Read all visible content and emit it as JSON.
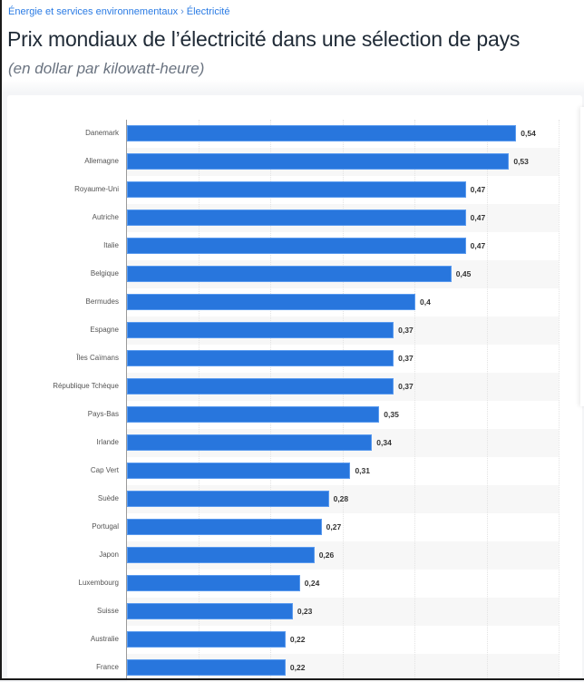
{
  "breadcrumb": {
    "items": [
      "Énergie et services environnementaux",
      "Électricité"
    ],
    "separator": "›"
  },
  "header": {
    "title": "Prix mondiaux de l’électricité dans une sélection de pays",
    "subtitle": "(en dollar par kilowatt-heure)"
  },
  "colors": {
    "bar": "#2876dd",
    "breadcrumb": "#2a7be4",
    "title": "#1f2a36",
    "row_alt": "#f7f7f7"
  },
  "chart_data": {
    "type": "bar",
    "orientation": "horizontal",
    "title": "Prix mondiaux de l’électricité dans une sélection de pays",
    "subtitle": "(en dollar par kilowatt-heure)",
    "xlabel": "",
    "ylabel": "",
    "xlim": [
      0,
      0.6
    ],
    "grid": true,
    "gridline_step": 0.1,
    "legend": null,
    "categories": [
      "Danemark",
      "Allemagne",
      "Royaume-Uni",
      "Autriche",
      "Italie",
      "Belgique",
      "Bermudes",
      "Espagne",
      "Îles Caïmans",
      "République Tchèque",
      "Pays-Bas",
      "Irlande",
      "Cap Vert",
      "Suède",
      "Portugal",
      "Japon",
      "Luxembourg",
      "Suisse",
      "Australie",
      "France"
    ],
    "values": [
      0.54,
      0.53,
      0.47,
      0.47,
      0.47,
      0.45,
      0.4,
      0.37,
      0.37,
      0.37,
      0.35,
      0.34,
      0.31,
      0.28,
      0.27,
      0.26,
      0.24,
      0.23,
      0.22,
      0.22
    ],
    "labels": [
      "0,54",
      "0,53",
      "0,47",
      "0,47",
      "0,47",
      "0,45",
      "0,4",
      "0,37",
      "0,37",
      "0,37",
      "0,35",
      "0,34",
      "0,31",
      "0,28",
      "0,27",
      "0,26",
      "0,24",
      "0,23",
      "0,22",
      "0,22"
    ]
  }
}
